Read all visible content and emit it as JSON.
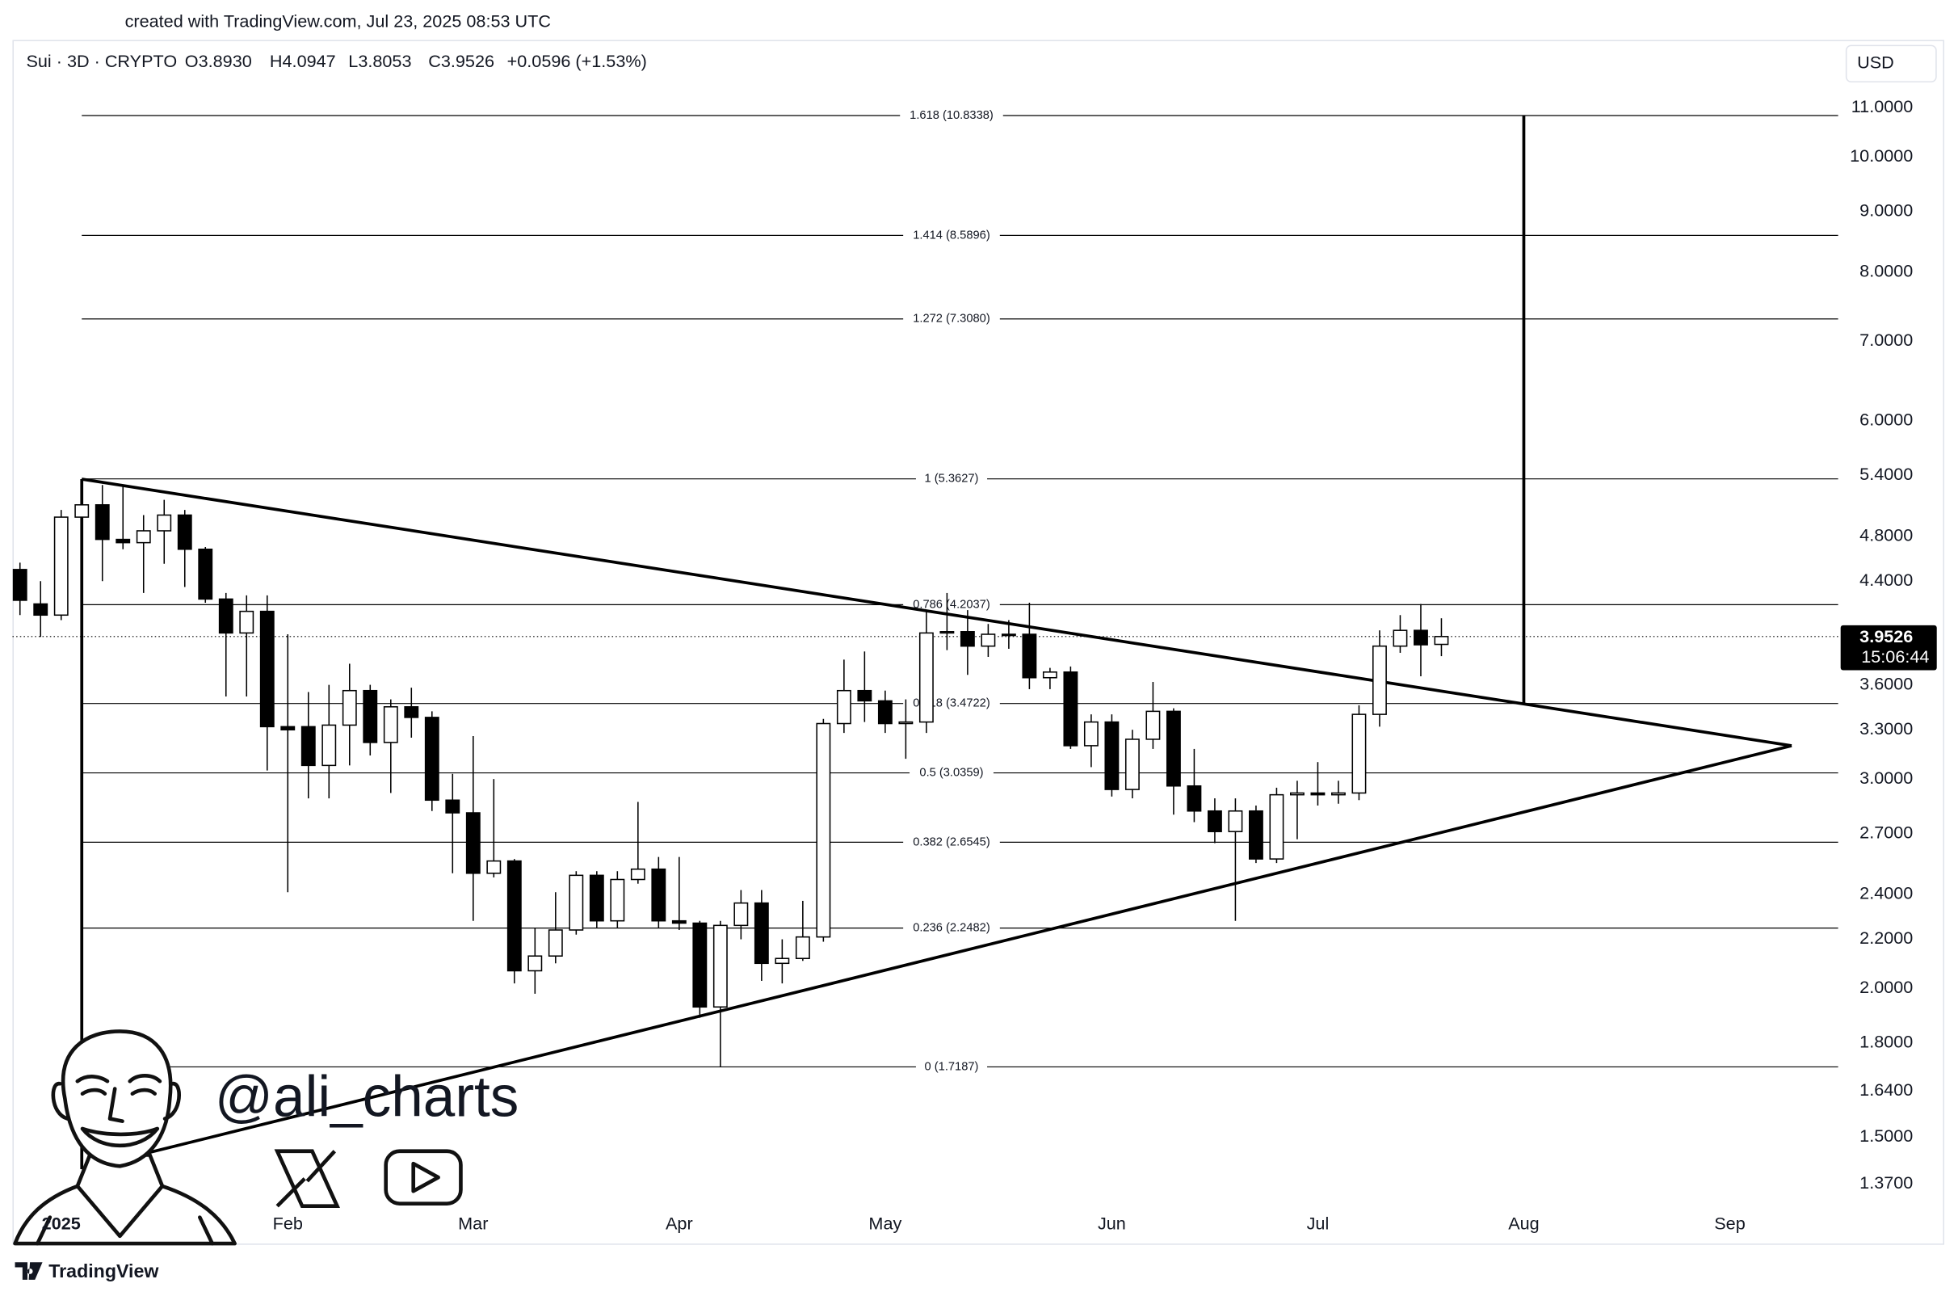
{
  "header": {
    "text": "created with TradingView.com, Jul 23, 2025 08:53 UTC"
  },
  "chart_data": {
    "type": "candlestick",
    "legend": {
      "symbol": "Sui · 3D · CRYPTO",
      "open": "O3.8930",
      "high": "H4.0947",
      "low": "L3.8053",
      "close": "C3.9526",
      "change": "+0.0596 (+1.53%)"
    },
    "currency": "USD",
    "yscale": "log",
    "grid": false,
    "up_color": "#ffffff",
    "down_color": "#000000",
    "outline_color": "#000000",
    "categories": [
      null,
      null,
      "2025",
      null,
      null,
      null,
      null,
      null,
      null,
      null,
      null,
      null,
      null,
      "Feb",
      null,
      null,
      null,
      null,
      null,
      null,
      null,
      null,
      "Mar",
      null,
      null,
      null,
      null,
      null,
      null,
      null,
      null,
      null,
      "Apr",
      null,
      null,
      null,
      null,
      null,
      null,
      null,
      null,
      null,
      "May",
      null,
      null,
      null,
      null,
      null,
      null,
      null,
      null,
      null,
      null,
      "Jun",
      null,
      null,
      null,
      null,
      null,
      null,
      null,
      null,
      null,
      "Jul",
      null,
      null,
      null,
      null,
      null,
      null,
      null,
      null,
      null,
      "Aug",
      null,
      null,
      null,
      null,
      null,
      null,
      null,
      null,
      null,
      "Sep",
      null,
      null,
      null,
      null,
      null
    ],
    "open": [
      4.5,
      4.21,
      4.12,
      4.98,
      5.1,
      4.77,
      4.74,
      4.85,
      5.0,
      4.68,
      4.25,
      3.98,
      4.15,
      3.32,
      3.32,
      3.08,
      3.33,
      3.56,
      3.22,
      3.45,
      3.38,
      2.88,
      2.81,
      2.5,
      2.56,
      2.07,
      2.13,
      2.24,
      2.49,
      2.28,
      2.47,
      2.52,
      2.28,
      2.27,
      1.93,
      2.26,
      2.36,
      2.1,
      2.12,
      2.21,
      3.34,
      3.56,
      3.49,
      3.34,
      3.35,
      3.98,
      3.99,
      3.88,
      3.97,
      3.97,
      3.65,
      3.69,
      3.2,
      3.35,
      2.94,
      3.24,
      3.42,
      2.96,
      2.82,
      2.71,
      2.82,
      2.57,
      2.91,
      2.92,
      2.91,
      2.92,
      3.4,
      3.88,
      4.0,
      3.893,
      null,
      null,
      null,
      null,
      null,
      null,
      null,
      null,
      null,
      null,
      null,
      null,
      null,
      null,
      null,
      null,
      null,
      null,
      null
    ],
    "high": [
      4.56,
      4.4,
      5.05,
      5.36,
      5.3,
      5.3,
      5.0,
      5.15,
      5.05,
      4.7,
      4.3,
      4.28,
      4.28,
      3.97,
      3.55,
      3.6,
      3.75,
      3.6,
      3.5,
      3.58,
      3.42,
      3.03,
      3.26,
      3.0,
      2.57,
      2.25,
      2.41,
      2.51,
      2.51,
      2.51,
      2.87,
      2.58,
      2.58,
      2.28,
      2.28,
      2.42,
      2.42,
      2.2,
      2.37,
      3.37,
      3.78,
      3.84,
      3.56,
      3.5,
      4.15,
      4.3,
      4.16,
      4.05,
      4.08,
      4.22,
      3.72,
      3.73,
      3.4,
      3.4,
      3.3,
      3.62,
      3.44,
      3.18,
      2.89,
      2.89,
      2.85,
      2.95,
      2.99,
      3.1,
      2.99,
      3.46,
      4.0,
      4.12,
      4.21,
      4.0947,
      null,
      null,
      null,
      null,
      null,
      null,
      null,
      null,
      null,
      null,
      null,
      null,
      null,
      null,
      null,
      null,
      null,
      null,
      null
    ],
    "low": [
      4.12,
      3.95,
      4.08,
      4.9,
      4.4,
      4.68,
      4.3,
      4.55,
      4.35,
      4.22,
      3.52,
      3.52,
      3.05,
      2.41,
      2.89,
      2.89,
      3.08,
      3.14,
      2.92,
      3.25,
      2.82,
      2.5,
      2.28,
      2.48,
      2.02,
      1.98,
      2.1,
      2.22,
      2.25,
      2.25,
      2.45,
      2.25,
      2.24,
      1.89,
      1.72,
      2.2,
      2.03,
      2.02,
      2.11,
      2.19,
      3.28,
      3.35,
      3.28,
      3.12,
      3.28,
      3.85,
      3.67,
      3.8,
      3.86,
      3.57,
      3.57,
      3.18,
      3.07,
      2.9,
      2.89,
      3.18,
      2.8,
      2.76,
      2.65,
      2.28,
      2.55,
      2.55,
      2.67,
      2.85,
      2.86,
      2.88,
      3.32,
      3.83,
      3.66,
      3.8053,
      null,
      null,
      null,
      null,
      null,
      null,
      null,
      null,
      null,
      null,
      null,
      null,
      null,
      null,
      null,
      null,
      null,
      null,
      null
    ],
    "close": [
      4.24,
      4.12,
      4.98,
      5.1,
      4.77,
      4.74,
      4.85,
      5.0,
      4.68,
      4.25,
      3.98,
      4.15,
      3.32,
      3.3,
      3.08,
      3.33,
      3.56,
      3.22,
      3.45,
      3.38,
      2.88,
      2.81,
      2.5,
      2.56,
      2.07,
      2.13,
      2.24,
      2.49,
      2.28,
      2.47,
      2.52,
      2.28,
      2.27,
      1.93,
      2.26,
      2.36,
      2.1,
      2.12,
      2.21,
      3.34,
      3.56,
      3.49,
      3.34,
      3.35,
      3.98,
      3.99,
      3.88,
      3.97,
      3.97,
      3.65,
      3.69,
      3.2,
      3.35,
      2.94,
      3.24,
      3.42,
      2.96,
      2.82,
      2.71,
      2.82,
      2.57,
      2.91,
      2.92,
      2.91,
      2.92,
      3.4,
      3.88,
      4.0,
      3.89,
      3.9526,
      null,
      null,
      null,
      null,
      null,
      null,
      null,
      null,
      null,
      null,
      null,
      null,
      null,
      null,
      null,
      null,
      null,
      null,
      null
    ],
    "ylim": [
      1.221,
      12.6
    ],
    "yticks": [
      {
        "value": 11,
        "label": "11.0000"
      },
      {
        "value": 10,
        "label": "10.0000"
      },
      {
        "value": 9,
        "label": "9.0000"
      },
      {
        "value": 8,
        "label": "8.0000"
      },
      {
        "value": 7,
        "label": "7.0000"
      },
      {
        "value": 6,
        "label": "6.0000"
      },
      {
        "value": 5.4,
        "label": "5.4000"
      },
      {
        "value": 4.8,
        "label": "4.8000"
      },
      {
        "value": 4.4,
        "label": "4.4000"
      },
      {
        "value": 3.6,
        "label": "3.6000"
      },
      {
        "value": 3.3,
        "label": "3.3000"
      },
      {
        "value": 3,
        "label": "3.0000"
      },
      {
        "value": 2.7,
        "label": "2.7000"
      },
      {
        "value": 2.4,
        "label": "2.4000"
      },
      {
        "value": 2.2,
        "label": "2.2000"
      },
      {
        "value": 2,
        "label": "2.0000"
      },
      {
        "value": 1.8,
        "label": "1.8000"
      },
      {
        "value": 1.64,
        "label": "1.6400"
      },
      {
        "value": 1.5,
        "label": "1.5000"
      },
      {
        "value": 1.37,
        "label": "1.3700"
      }
    ],
    "fib_levels": [
      {
        "value": 10.8338,
        "label": "1.618 (10.8338)"
      },
      {
        "value": 8.5896,
        "label": "1.414 (8.5896)"
      },
      {
        "value": 7.308,
        "label": "1.272 (7.3080)"
      },
      {
        "value": 5.3627,
        "label": "1 (5.3627)"
      },
      {
        "value": 4.2037,
        "label": "0.786 (4.2037)"
      },
      {
        "value": 3.4722,
        "label": "0.618 (3.4722)"
      },
      {
        "value": 3.0359,
        "label": "0.5 (3.0359)"
      },
      {
        "value": 2.6545,
        "label": "0.382 (2.6545)"
      },
      {
        "value": 2.2482,
        "label": "0.236 (2.2482)"
      },
      {
        "value": 1.7187,
        "label": "0 (1.7187)"
      }
    ],
    "fib_start": 3,
    "trendlines": [
      {
        "x": [
          3,
          86
        ],
        "y": [
          5.36,
          3.2
        ]
      },
      {
        "x": [
          3,
          86
        ],
        "y": [
          1.41,
          3.2
        ]
      },
      {
        "x": [
          3,
          3
        ],
        "y": [
          5.36,
          1.41
        ]
      },
      {
        "x": [
          73,
          73
        ],
        "y": [
          10.8338,
          3.4722
        ]
      }
    ],
    "last_price": {
      "label": "3.9526",
      "countdown": "15:06:44"
    }
  },
  "watermark": {
    "handle": "@ali_charts"
  },
  "footer": {
    "brand": "TradingView"
  }
}
